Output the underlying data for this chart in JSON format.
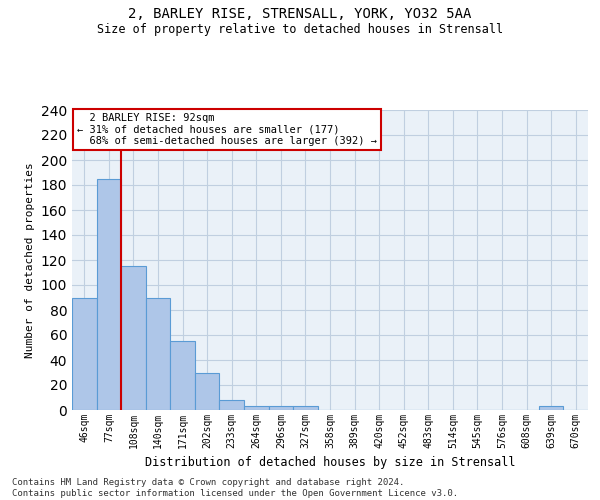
{
  "title_line1": "2, BARLEY RISE, STRENSALL, YORK, YO32 5AA",
  "title_line2": "Size of property relative to detached houses in Strensall",
  "xlabel": "Distribution of detached houses by size in Strensall",
  "ylabel": "Number of detached properties",
  "bar_labels": [
    "46sqm",
    "77sqm",
    "108sqm",
    "140sqm",
    "171sqm",
    "202sqm",
    "233sqm",
    "264sqm",
    "296sqm",
    "327sqm",
    "358sqm",
    "389sqm",
    "420sqm",
    "452sqm",
    "483sqm",
    "514sqm",
    "545sqm",
    "576sqm",
    "608sqm",
    "639sqm",
    "670sqm"
  ],
  "bar_values": [
    90,
    185,
    115,
    90,
    55,
    30,
    8,
    3,
    3,
    3,
    0,
    0,
    0,
    0,
    0,
    0,
    0,
    0,
    0,
    3,
    0
  ],
  "bar_color": "#aec6e8",
  "bar_edge_color": "#5a9bd5",
  "ylim": [
    0,
    240
  ],
  "yticks": [
    0,
    20,
    40,
    60,
    80,
    100,
    120,
    140,
    160,
    180,
    200,
    220,
    240
  ],
  "vline_x": 1.5,
  "vline_color": "#cc0000",
  "annotation_text": "  2 BARLEY RISE: 92sqm\n← 31% of detached houses are smaller (177)\n  68% of semi-detached houses are larger (392) →",
  "annotation_box_color": "#ffffff",
  "annotation_box_edge_color": "#cc0000",
  "footer_text": "Contains HM Land Registry data © Crown copyright and database right 2024.\nContains public sector information licensed under the Open Government Licence v3.0.",
  "grid_color": "#c0cfe0",
  "bg_color": "#eaf1f8"
}
